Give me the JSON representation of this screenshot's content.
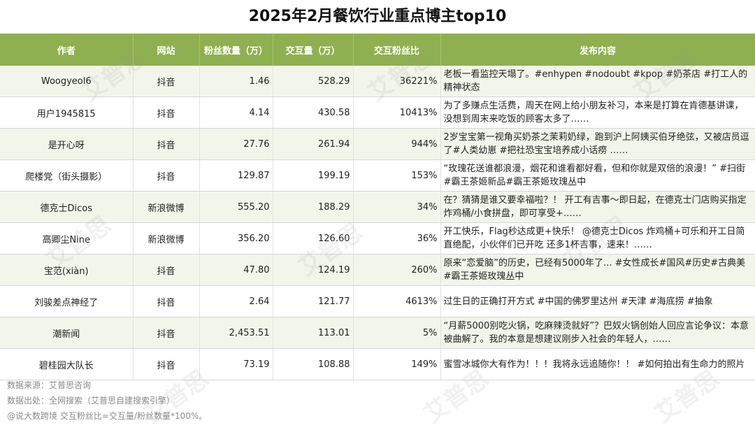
{
  "title": "2025年2月餐饮行业重点博主top10",
  "headers": [
    "作者",
    "网站",
    "粉丝数量（万）",
    "交互量（万）",
    "交互粉丝比",
    "发布内容"
  ],
  "rows": [
    {
      "author": "Woogyeol6",
      "site": "抖音",
      "fans": "1.46",
      "interactions": "528.29",
      "ratio": "36221%",
      "content": "老板一看监控天塌了。#enhypen #nodoubt #kpop #奶茶店 #打工人的精神状态"
    },
    {
      "author": "用户1945815",
      "site": "抖音",
      "fans": "4.14",
      "interactions": "430.58",
      "ratio": "10413%",
      "content": "为了多赚点生活费，周天在网上给小朋友补习，本来是打算在肯德基讲课，没想到周末来吃饭的顾客太多了……"
    },
    {
      "author": "是开心呀",
      "site": "抖音",
      "fans": "27.76",
      "interactions": "261.94",
      "ratio": "944%",
      "content": "2岁宝宝第一视角买奶茶之茉莉奶绿，跑到沪上阿姨买伯牙绝弦，又被店员逗了#人类幼崽 #把社恐宝宝培养成小话痨 ……"
    },
    {
      "author": "爬楼党（街头摄影）",
      "site": "抖音",
      "fans": "129.87",
      "interactions": "199.19",
      "ratio": "153%",
      "content": "“玫瑰花送谁都浪漫，烟花和谁看都好看，但和你就是双倍的浪漫！” #扫街#霸王茶姬新品#霸王茶姬玫瑰丛中"
    },
    {
      "author": "德克士Dicos",
      "site": "新浪微博",
      "fans": "555.20",
      "interactions": "188.29",
      "ratio": "34%",
      "content": "在？猜猜是谁又要幸福啦？！ 开工有吉事～即日起，在德克士门店购买指定炸鸡桶/小食拼盘，即可享受+……"
    },
    {
      "author": "高卿尘Nine",
      "site": "新浪微博",
      "fans": "356.20",
      "interactions": "126.60",
      "ratio": "36%",
      "content": "开工快乐，Flag秒达成更+快乐！ @德克士Dicos 炸鸡桶+可乐和开工日简直绝配，小伙伴们已开吃 还多1杯吉事，速来！……"
    },
    {
      "author": "宝范(xiàn)",
      "site": "抖音",
      "fans": "47.80",
      "interactions": "124.19",
      "ratio": "260%",
      "content": "原来“恋爱脑”的历史，已经有5000年了... #女性成长#国风#历史#古典美#霸王茶姬玫瑰丛中"
    },
    {
      "author": "刘骏差点神经了",
      "site": "抖音",
      "fans": "2.64",
      "interactions": "121.77",
      "ratio": "4613%",
      "content": "过生日的正确打开方式 #中国的佛罗里达州 #天津 #海底捞 #抽象"
    },
    {
      "author": "潮新闻",
      "site": "抖音",
      "fans": "2,453.51",
      "interactions": "113.01",
      "ratio": "5%",
      "content": "“月薪5000别吃火锅，吃麻辣烫就好”？巴奴火锅创始人回应言论争议：本意被曲解了。我的本意是想建议刚步入社会的年轻人，……"
    },
    {
      "author": "碧桂园大队长",
      "site": "抖音",
      "fans": "73.19",
      "interactions": "108.88",
      "ratio": "149%",
      "content": "蜜雪冰城你大有作为！！！我将永远追随你！！ #如何拍出有生命力的照片"
    }
  ],
  "footer": {
    "source": "数据来源：艾普思咨询",
    "origin": "数据出处：全网搜索（艾普思自建搜索引擎）",
    "note": "交互粉丝比=交互量/粉丝数量*100%。",
    "corner": "@说大数跨境"
  },
  "watermark": "艾普思"
}
